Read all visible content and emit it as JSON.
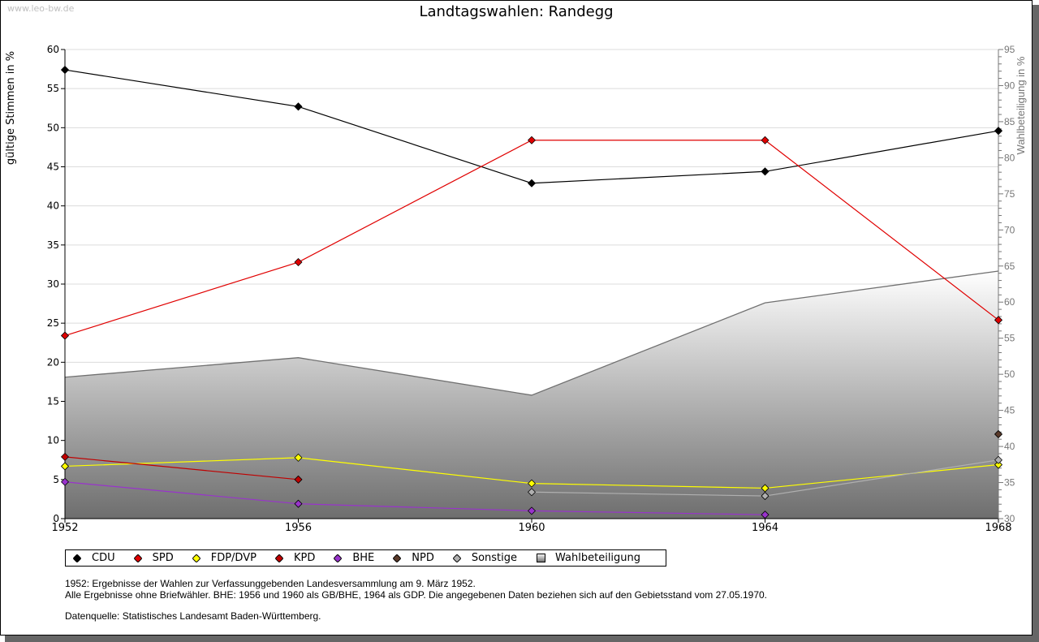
{
  "watermark": "www.leo-bw.de",
  "chart_data": {
    "type": "line",
    "title": "Landtagswahlen: Randegg",
    "ylabel": "gültige Stimmen in %",
    "y2label": "Wahlbeteiligung in %",
    "xlabel": "",
    "x": [
      1952,
      1956,
      1960,
      1964,
      1968
    ],
    "x_tick_labels": [
      "1952",
      "1956",
      "1960",
      "1964",
      "1968"
    ],
    "ylim": [
      0,
      60
    ],
    "y_ticks": [
      0,
      5,
      10,
      15,
      20,
      25,
      30,
      35,
      40,
      45,
      50,
      55,
      60
    ],
    "y2lim": [
      30,
      95
    ],
    "y2_ticks": [
      30,
      35,
      40,
      45,
      50,
      55,
      60,
      65,
      70,
      75,
      80,
      85,
      90,
      95
    ],
    "grid": true,
    "legend_position": "bottom",
    "series": [
      {
        "name": "CDU",
        "color": "#000000",
        "values": [
          57.4,
          52.7,
          42.9,
          44.4,
          49.6
        ]
      },
      {
        "name": "SPD",
        "color": "#e00000",
        "values": [
          23.4,
          32.8,
          48.4,
          48.4,
          25.4
        ]
      },
      {
        "name": "FDP/DVP",
        "color": "#ffff00",
        "values": [
          6.7,
          7.8,
          4.5,
          3.9,
          6.9
        ]
      },
      {
        "name": "KPD",
        "color": "#c00000",
        "values": [
          7.9,
          5.0,
          null,
          null,
          null
        ]
      },
      {
        "name": "BHE",
        "color": "#9933cc",
        "values": [
          4.7,
          1.9,
          1.0,
          0.5,
          null
        ]
      },
      {
        "name": "NPD",
        "color": "#5a3a2a",
        "values": [
          null,
          null,
          null,
          null,
          10.8
        ]
      },
      {
        "name": "Sonstige",
        "color": "#b0b0b0",
        "values": [
          null,
          null,
          3.4,
          2.9,
          7.5
        ]
      }
    ],
    "area_series": {
      "name": "Wahlbeteiligung",
      "axis": "right",
      "values": [
        49.6,
        52.3,
        47.1,
        59.9,
        64.3
      ]
    }
  },
  "notes": {
    "line1": "1952: Ergebnisse der Wahlen zur Verfassunggebenden Landesversammlung am 9. März 1952.",
    "line2": "Alle Ergebnisse ohne Briefwähler. BHE: 1956 und 1960 als GB/BHE, 1964 als GDP. Die angegebenen Daten beziehen sich auf den Gebietsstand vom 27.05.1970.",
    "source": "Datenquelle: Statistisches Landesamt Baden-Württemberg."
  }
}
